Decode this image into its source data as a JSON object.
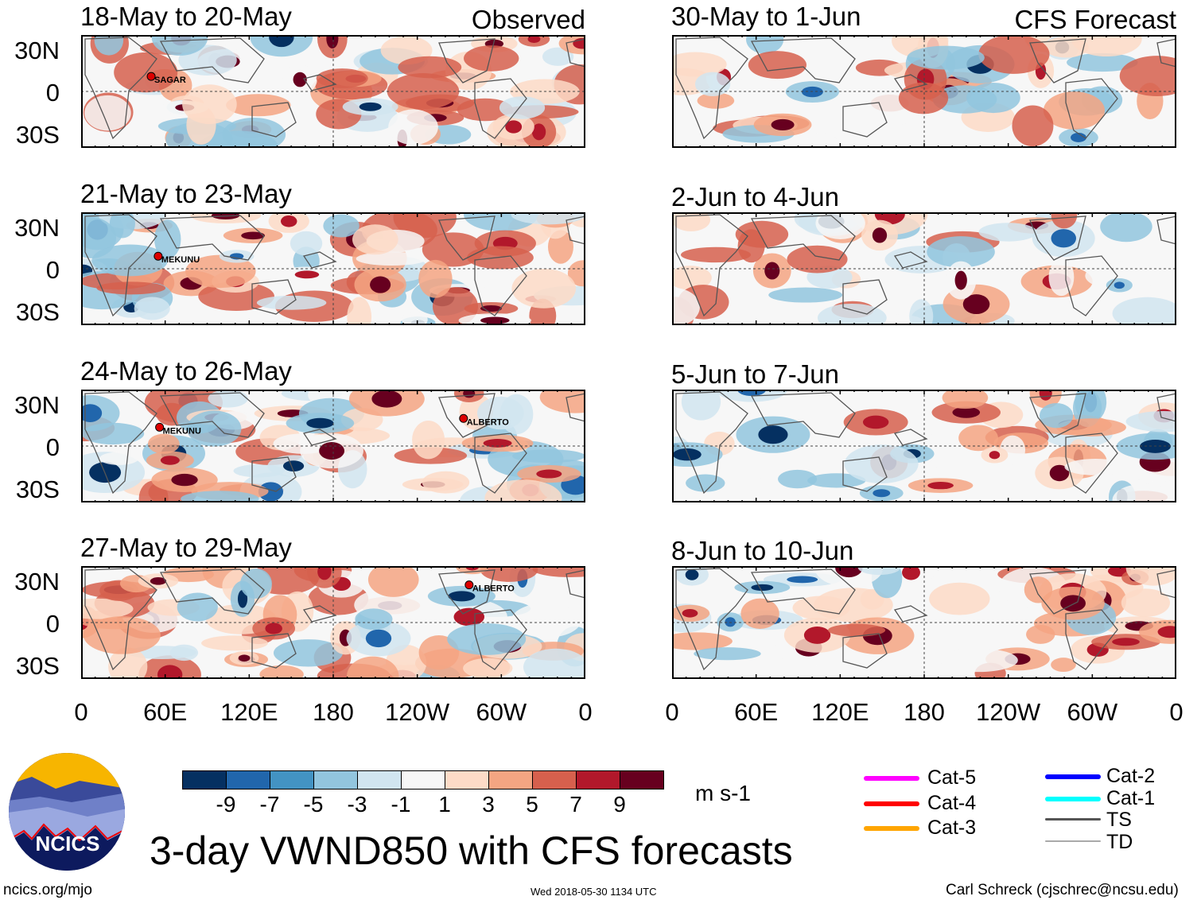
{
  "chart_data": {
    "type": "heatmap",
    "title": "3-day VWND850 with CFS forecasts",
    "units": "m s-1",
    "colorbar": {
      "ticks": [
        "-9",
        "-7",
        "-5",
        "-3",
        "-1",
        "1",
        "3",
        "5",
        "7",
        "9"
      ],
      "colors": [
        "#053061",
        "#2166ac",
        "#4393c3",
        "#92c5de",
        "#d1e5f0",
        "#f7f7f7",
        "#fddbc7",
        "#f4a582",
        "#d6604d",
        "#b2182b",
        "#67001f"
      ]
    },
    "ylabels": [
      "30N",
      "0",
      "30S"
    ],
    "xlabels": [
      "0",
      "60E",
      "120E",
      "180",
      "120W",
      "60W",
      "0"
    ],
    "columns": [
      {
        "header": "Observed",
        "panels": [
          {
            "title": "18-May to 20-May",
            "storms": [
              {
                "name": "SAGAR",
                "lon": 50,
                "lat": 12
              }
            ]
          },
          {
            "title": "21-May to 23-May",
            "storms": [
              {
                "name": "MEKUNU",
                "lon": 55,
                "lat": 10
              }
            ]
          },
          {
            "title": "24-May to 26-May",
            "storms": [
              {
                "name": "MEKUNU",
                "lon": 56,
                "lat": 15
              },
              {
                "name": "ALBERTO",
                "lon": 273,
                "lat": 22
              }
            ]
          },
          {
            "title": "27-May to 29-May",
            "storms": [
              {
                "name": "ALBERTO",
                "lon": 277,
                "lat": 30
              }
            ]
          }
        ]
      },
      {
        "header": "CFS Forecast",
        "panels": [
          {
            "title": "30-May to 1-Jun",
            "storms": []
          },
          {
            "title": "2-Jun to 4-Jun",
            "storms": []
          },
          {
            "title": "5-Jun to 7-Jun",
            "storms": []
          },
          {
            "title": "8-Jun to 10-Jun",
            "storms": []
          }
        ]
      }
    ]
  },
  "legend": {
    "items": [
      {
        "label": "Cat-5",
        "color": "#ff00ff"
      },
      {
        "label": "Cat-4",
        "color": "#ff0000"
      },
      {
        "label": "Cat-3",
        "color": "#ffa500"
      },
      {
        "label": "Cat-2",
        "color": "#0000ff"
      },
      {
        "label": "Cat-1",
        "color": "#00ffff"
      },
      {
        "label": "TS",
        "color": "#555555"
      },
      {
        "label": "TD",
        "color": "#aaaaaa"
      }
    ]
  },
  "logo": {
    "text": "NCICS"
  },
  "footer": {
    "left": "ncics.org/mjo",
    "center": "Wed 2018-05-30 1134 UTC",
    "right": "Carl Schreck (cjschrec@ncsu.edu)"
  }
}
